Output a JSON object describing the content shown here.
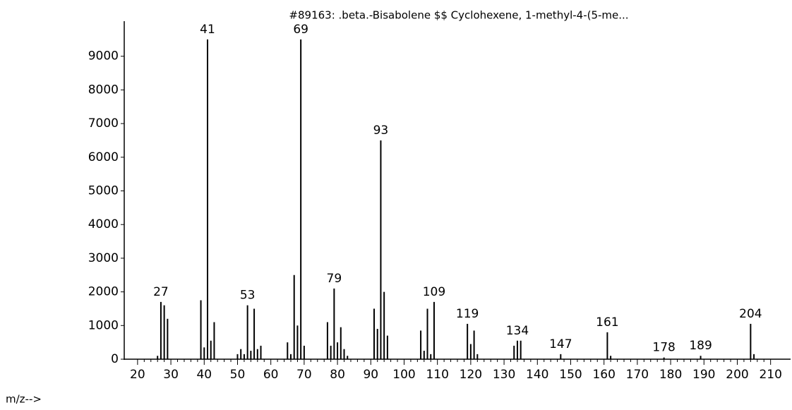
{
  "chart_data": {
    "type": "stem",
    "title": "#89163: .beta.-Bisabolene $$ Cyclohexene, 1-methyl-4-(5-me...",
    "x_label": "m/z-->",
    "x": [
      26,
      27,
      28,
      29,
      39,
      40,
      41,
      42,
      43,
      50,
      51,
      52,
      53,
      54,
      55,
      56,
      57,
      65,
      66,
      67,
      68,
      69,
      70,
      77,
      78,
      79,
      80,
      81,
      82,
      83,
      91,
      92,
      93,
      94,
      95,
      105,
      106,
      107,
      108,
      109,
      119,
      120,
      121,
      122,
      133,
      134,
      135,
      147,
      161,
      162,
      178,
      189,
      204,
      205
    ],
    "values": [
      100,
      1700,
      1600,
      1200,
      1750,
      350,
      9500,
      550,
      1100,
      150,
      300,
      150,
      1600,
      250,
      1500,
      300,
      400,
      500,
      150,
      2500,
      1000,
      9500,
      400,
      1100,
      400,
      2100,
      500,
      950,
      300,
      100,
      1500,
      900,
      6500,
      2000,
      700,
      850,
      250,
      1500,
      150,
      1700,
      1050,
      450,
      850,
      150,
      400,
      550,
      550,
      150,
      800,
      100,
      50,
      100,
      1050,
      150
    ],
    "peak_labels": [
      27,
      41,
      53,
      69,
      79,
      93,
      109,
      119,
      134,
      147,
      161,
      178,
      189,
      204
    ],
    "color": "#000000",
    "xlim": [
      16,
      216
    ],
    "ylim": [
      0,
      10000
    ],
    "xticks": [
      20,
      30,
      40,
      50,
      60,
      70,
      80,
      90,
      100,
      110,
      120,
      130,
      140,
      150,
      160,
      170,
      180,
      190,
      200,
      210
    ],
    "yticks": [
      0,
      1000,
      2000,
      3000,
      4000,
      5000,
      6000,
      7000,
      8000,
      9000
    ]
  }
}
